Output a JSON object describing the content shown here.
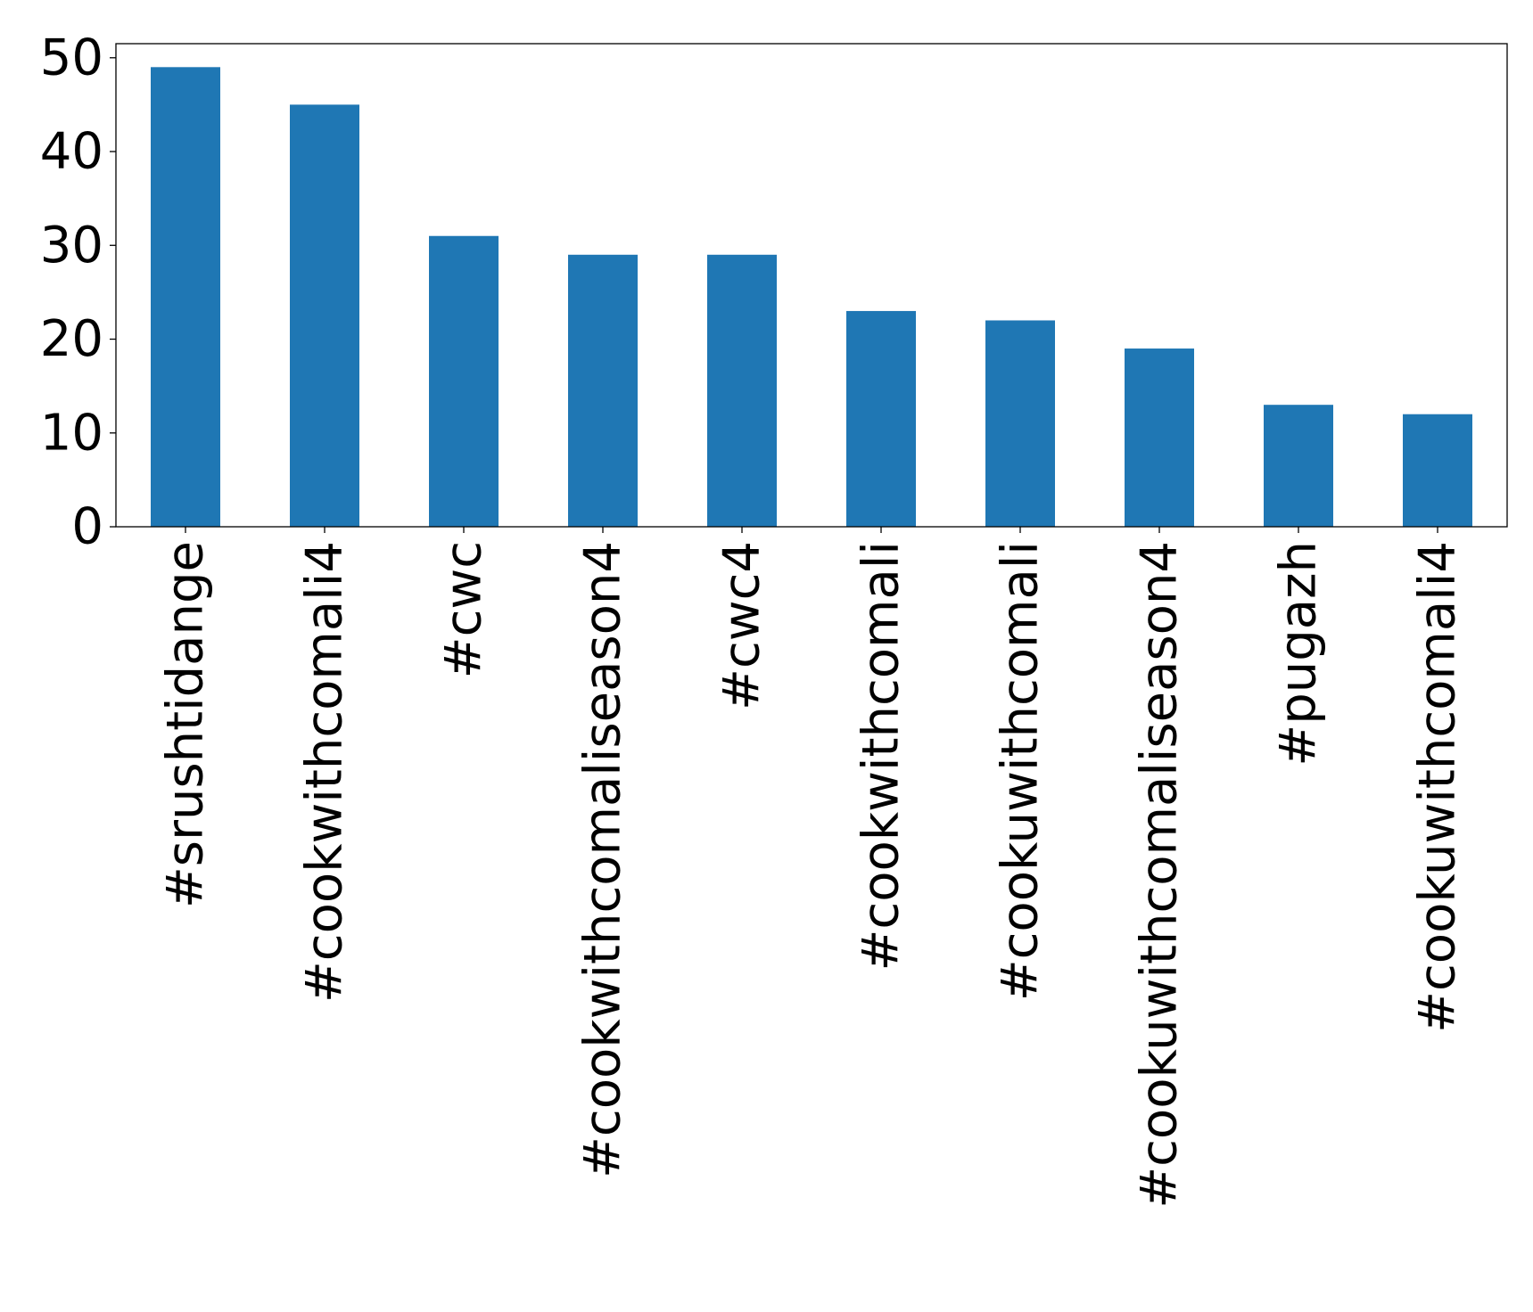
{
  "chart_data": {
    "type": "bar",
    "title": "",
    "xlabel": "",
    "ylabel": "",
    "categories": [
      "#srushtidange",
      "#cookwithcomali4",
      "#cwc",
      "#cookwithcomaliseason4",
      "#cwc4",
      "#cookwithcomali",
      "#cookuwithcomali",
      "#cookuwithcomaliseason4",
      "#pugazh",
      "#cookuwithcomali4"
    ],
    "values": [
      49,
      45,
      31,
      29,
      29,
      23,
      22,
      19,
      13,
      12
    ],
    "ylim": [
      0,
      51.5
    ],
    "yticks": [
      0,
      10,
      20,
      30,
      40,
      50
    ],
    "grid": false,
    "legend": "none",
    "bar_color": "#1f77b4"
  }
}
